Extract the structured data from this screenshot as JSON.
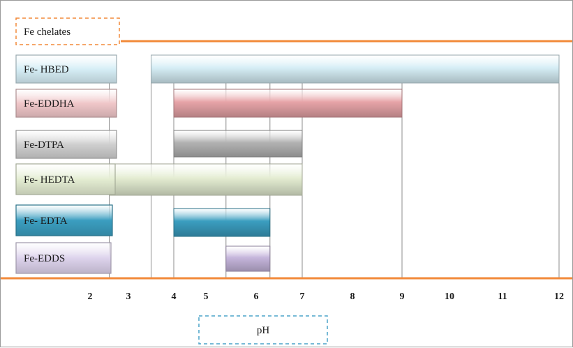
{
  "chart_data": {
    "type": "bar",
    "orientation": "horizontal-range",
    "title": "Fe chelates",
    "xlabel": "pH",
    "x_ticks": [
      2,
      3,
      4,
      5,
      6,
      7,
      8,
      9,
      10,
      11,
      12
    ],
    "categories": [
      "Fe- HBED",
      "Fe-EDDHA",
      "Fe-DTPA",
      "Fe- HEDTA",
      "Fe- EDTA",
      "Fe-EDDS"
    ],
    "ranges": [
      {
        "name": "Fe- HBED",
        "start": 3.5,
        "end": 12,
        "color": "#d6eef6"
      },
      {
        "name": "Fe-EDDHA",
        "start": 4,
        "end": 9,
        "color": "#e7a4a8"
      },
      {
        "name": "Fe-DTPA",
        "start": 4,
        "end": 7,
        "color": "#b3b3b3"
      },
      {
        "name": "Fe- HEDTA",
        "start": 2.5,
        "end": 7,
        "color": "#e4edd2"
      },
      {
        "name": "Fe- EDTA",
        "start": 4,
        "end": 6.3,
        "color": "#3b9ec0"
      },
      {
        "name": "Fe-EDDS",
        "start": 5.4,
        "end": 6.3,
        "color": "#c6b6dc"
      }
    ],
    "label_colors": [
      "#d6eef6",
      "#f0c7c9",
      "#cfcfcf",
      "#e4edd2",
      "#3b9ec0",
      "#ddd3ec"
    ],
    "accent_color": "#f28a3a",
    "grid": true
  }
}
